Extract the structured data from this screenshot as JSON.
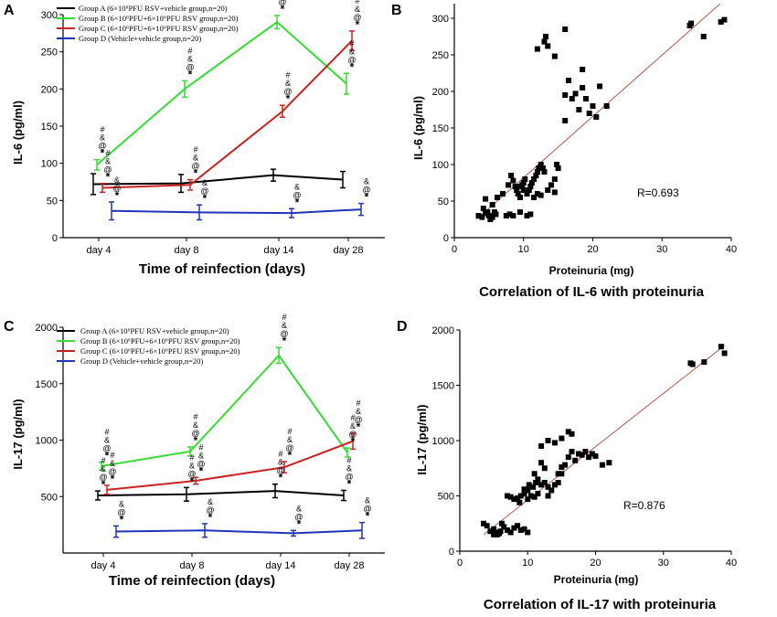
{
  "chart_data": [
    {
      "panel": "A",
      "type": "line",
      "ylabel": "IL-6 (pg/ml)",
      "xlabel": "Time of reinfection (days)",
      "categories": [
        "day 4",
        "day 8",
        "day 14",
        "day 28"
      ],
      "ylim": [
        0,
        300
      ],
      "yticks": [
        0,
        50,
        100,
        150,
        200,
        250,
        300
      ],
      "series": [
        {
          "name": "Group A (6×10⁶PFU RSV+vehicle group,n=20)",
          "color": "#000000",
          "values": [
            72,
            73,
            84,
            78
          ],
          "errors": [
            14,
            12,
            8,
            11
          ]
        },
        {
          "name": "Group B (6×10⁶PFU+6×10⁶PFU RSV group,n=20)",
          "color": "#33dd33",
          "values": [
            98,
            200,
            290,
            207
          ],
          "errors": [
            7,
            11,
            9,
            14
          ]
        },
        {
          "name": "Group C (6×10⁶PFU+6×10⁶PFU RSV group,n=20)",
          "color": "#cc2222",
          "values": [
            67,
            71,
            170,
            265
          ],
          "errors": [
            6,
            7,
            8,
            13
          ]
        },
        {
          "name": "Group D (Vehicle+vehicle group,n=20)",
          "color": "#2233bb",
          "values": [
            36,
            34,
            33,
            38
          ],
          "errors": [
            12,
            10,
            6,
            8
          ]
        }
      ]
    },
    {
      "panel": "B",
      "type": "scatter",
      "title": "Correlation of IL-6 with proteinuria",
      "xlabel": "Proteinuria (mg)",
      "ylabel": "IL-6 (pg/ml)",
      "xlim": [
        0,
        40
      ],
      "ylim": [
        0,
        320
      ],
      "xticks": [
        0,
        10,
        20,
        30,
        40
      ],
      "yticks": [
        0,
        50,
        100,
        150,
        200,
        250,
        300
      ],
      "r_label": "R=0.693",
      "regression": {
        "x": [
          3.2,
          38.4
        ],
        "y": [
          25,
          320
        ]
      },
      "points": [
        [
          3.5,
          30
        ],
        [
          4,
          28
        ],
        [
          4.2,
          40
        ],
        [
          4.5,
          33
        ],
        [
          4.8,
          35
        ],
        [
          5,
          30
        ],
        [
          5.2,
          25
        ],
        [
          5.5,
          28
        ],
        [
          5.8,
          35
        ],
        [
          6,
          32
        ],
        [
          4.5,
          53
        ],
        [
          5.5,
          45
        ],
        [
          6.2,
          55
        ],
        [
          7,
          60
        ],
        [
          7.5,
          30
        ],
        [
          8,
          32
        ],
        [
          8.5,
          30
        ],
        [
          7.8,
          72
        ],
        [
          8.2,
          85
        ],
        [
          8.5,
          78
        ],
        [
          8.8,
          70
        ],
        [
          9,
          65
        ],
        [
          9.2,
          60
        ],
        [
          9.5,
          70
        ],
        [
          9.8,
          72
        ],
        [
          10,
          75
        ],
        [
          10.2,
          80
        ],
        [
          10,
          65
        ],
        [
          9.5,
          55
        ],
        [
          10.5,
          60
        ],
        [
          10.8,
          65
        ],
        [
          11,
          70
        ],
        [
          11.2,
          75
        ],
        [
          11.5,
          80
        ],
        [
          11.8,
          85
        ],
        [
          12,
          90
        ],
        [
          12.2,
          95
        ],
        [
          12.5,
          100
        ],
        [
          12.8,
          95
        ],
        [
          13,
          90
        ],
        [
          11.5,
          55
        ],
        [
          12,
          60
        ],
        [
          12.5,
          58
        ],
        [
          13.5,
          65
        ],
        [
          14,
          72
        ],
        [
          14.5,
          80
        ],
        [
          14.8,
          100
        ],
        [
          15,
          95
        ],
        [
          14.5,
          62
        ],
        [
          10.5,
          30
        ],
        [
          11,
          32
        ],
        [
          9.5,
          35
        ],
        [
          12,
          258
        ],
        [
          13,
          268
        ],
        [
          13.2,
          275
        ],
        [
          13.5,
          262
        ],
        [
          14.5,
          248
        ],
        [
          16,
          285
        ],
        [
          16,
          195
        ],
        [
          16.5,
          215
        ],
        [
          16,
          160
        ],
        [
          17,
          190
        ],
        [
          17.5,
          197
        ],
        [
          18,
          175
        ],
        [
          18.5,
          205
        ],
        [
          18.5,
          230
        ],
        [
          19,
          190
        ],
        [
          19.5,
          170
        ],
        [
          20,
          180
        ],
        [
          20.5,
          165
        ],
        [
          21,
          207
        ],
        [
          22,
          180
        ],
        [
          34,
          290
        ],
        [
          34.2,
          293
        ],
        [
          36,
          275
        ],
        [
          38.5,
          295
        ],
        [
          39,
          298
        ]
      ]
    },
    {
      "panel": "C",
      "type": "line",
      "ylabel": "IL-17 (pg/ml)",
      "xlabel": "Time of reinfection (days)",
      "categories": [
        "day 4",
        "day 8",
        "day 14",
        "day 28"
      ],
      "ylim": [
        0,
        2000
      ],
      "yticks": [
        500,
        1000,
        1500,
        2000
      ],
      "series": [
        {
          "name": "Group A (6×10⁶PFU RSV+vehicle group,n=20)",
          "color": "#000000",
          "values": [
            510,
            520,
            550,
            510
          ],
          "errors": [
            40,
            60,
            60,
            45
          ]
        },
        {
          "name": "Group B (6×10⁶PFU+6×10⁶PFU RSV group,n=20)",
          "color": "#33dd33",
          "values": [
            770,
            900,
            1750,
            890
          ],
          "errors": [
            35,
            40,
            70,
            40
          ]
        },
        {
          "name": "Group C (6×10⁶PFU+6×10⁶PFU RSV group,n=20)",
          "color": "#cc2222",
          "values": [
            560,
            640,
            760,
            990
          ],
          "errors": [
            40,
            30,
            50,
            70
          ]
        },
        {
          "name": "Group D (Vehicle+vehicle group,n=20)",
          "color": "#2233bb",
          "values": [
            190,
            200,
            175,
            200
          ],
          "errors": [
            50,
            60,
            25,
            70
          ]
        }
      ]
    },
    {
      "panel": "D",
      "type": "scatter",
      "title": "Correlation of IL-17 with proteinuria",
      "xlabel": "Proteinuria (mg)",
      "ylabel": "IL-17 (pg/ml)",
      "xlim": [
        0,
        40
      ],
      "ylim": [
        0,
        2000
      ],
      "xticks": [
        0,
        10,
        20,
        30,
        40
      ],
      "yticks": [
        0,
        500,
        1000,
        1500,
        2000
      ],
      "r_label": "R=0.876",
      "regression": {
        "x": [
          3.5,
          39
        ],
        "y": [
          150,
          1860
        ]
      },
      "points": [
        [
          3.5,
          250
        ],
        [
          4,
          230
        ],
        [
          4.5,
          180
        ],
        [
          5,
          150
        ],
        [
          5,
          200
        ],
        [
          5.2,
          170
        ],
        [
          5.5,
          150
        ],
        [
          5.8,
          160
        ],
        [
          6,
          180
        ],
        [
          6.2,
          250
        ],
        [
          6.5,
          220
        ],
        [
          7,
          190
        ],
        [
          7.5,
          170
        ],
        [
          8,
          210
        ],
        [
          8.5,
          230
        ],
        [
          9,
          190
        ],
        [
          9.5,
          200
        ],
        [
          10,
          170
        ],
        [
          7,
          500
        ],
        [
          7.5,
          490
        ],
        [
          8,
          470
        ],
        [
          8.5,
          480
        ],
        [
          9,
          500
        ],
        [
          9.5,
          520
        ],
        [
          10,
          550
        ],
        [
          10.5,
          500
        ],
        [
          11,
          490
        ],
        [
          11.5,
          520
        ],
        [
          12,
          600
        ],
        [
          12.5,
          620
        ],
        [
          11,
          700
        ],
        [
          11.5,
          650
        ],
        [
          12,
          800
        ],
        [
          12.5,
          750
        ],
        [
          13,
          500
        ],
        [
          13.5,
          550
        ],
        [
          14,
          600
        ],
        [
          14.5,
          620
        ],
        [
          15,
          700
        ],
        [
          15.5,
          780
        ],
        [
          16,
          850
        ],
        [
          16.5,
          900
        ],
        [
          17,
          820
        ],
        [
          17.5,
          880
        ],
        [
          18,
          870
        ],
        [
          18.5,
          900
        ],
        [
          19,
          850
        ],
        [
          19.5,
          880
        ],
        [
          20,
          860
        ],
        [
          21,
          780
        ],
        [
          22,
          800
        ],
        [
          12,
          950
        ],
        [
          13,
          1000
        ],
        [
          14,
          980
        ],
        [
          15,
          1020
        ],
        [
          16,
          1080
        ],
        [
          16.5,
          1060
        ],
        [
          9.5,
          560
        ],
        [
          10.2,
          600
        ],
        [
          10.8,
          580
        ],
        [
          11.2,
          620
        ],
        [
          13,
          580
        ],
        [
          14.5,
          700
        ],
        [
          15,
          760
        ],
        [
          8.8,
          440
        ],
        [
          10,
          470
        ],
        [
          34,
          1700
        ],
        [
          34.3,
          1690
        ],
        [
          36,
          1710
        ],
        [
          38.5,
          1850
        ],
        [
          39,
          1790
        ]
      ]
    }
  ],
  "panels": {
    "A": {
      "letter": "A"
    },
    "B": {
      "letter": "B"
    },
    "C": {
      "letter": "C"
    },
    "D": {
      "letter": "D"
    }
  }
}
